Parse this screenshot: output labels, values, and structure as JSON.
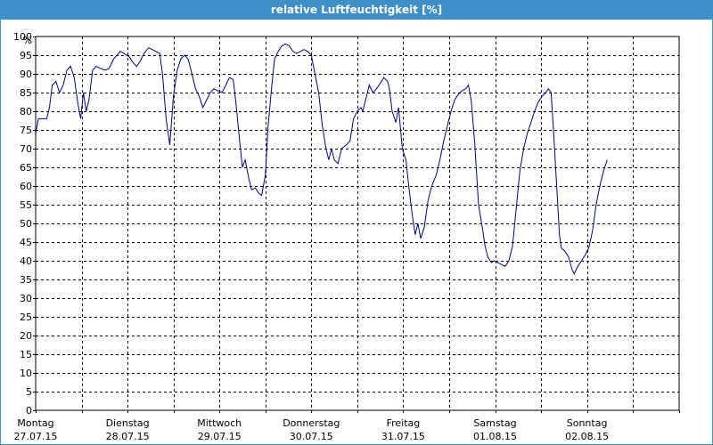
{
  "window": {
    "title": "relative Luftfeuchtigkeit [%]"
  },
  "chart_data": {
    "type": "line",
    "title": "relative Luftfeuchtigkeit [%]",
    "ylabel": "%",
    "xlabel": "",
    "ylim": [
      0,
      100
    ],
    "ytick_step": 5,
    "grid": true,
    "grid_style": "dashed",
    "line_color": "#00008b",
    "days": [
      {
        "name": "Montag",
        "date": "27.07.15"
      },
      {
        "name": "Dienstag",
        "date": "28.07.15"
      },
      {
        "name": "Mittwoch",
        "date": "29.07.15"
      },
      {
        "name": "Donnerstag",
        "date": "30.07.15"
      },
      {
        "name": "Freitag",
        "date": "31.07.15"
      },
      {
        "name": "Samstag",
        "date": "01.08.15"
      },
      {
        "name": "Sonntag",
        "date": "02.08.15"
      }
    ],
    "x_unit": "days since Montag 27.07.15 00:00",
    "series": [
      {
        "values": [
          [
            0.0,
            74
          ],
          [
            0.03,
            78
          ],
          [
            0.08,
            78
          ],
          [
            0.12,
            78
          ],
          [
            0.15,
            81
          ],
          [
            0.18,
            87
          ],
          [
            0.22,
            88
          ],
          [
            0.26,
            85
          ],
          [
            0.3,
            87
          ],
          [
            0.34,
            91
          ],
          [
            0.38,
            92
          ],
          [
            0.42,
            89
          ],
          [
            0.46,
            82
          ],
          [
            0.49,
            78
          ],
          [
            0.52,
            85
          ],
          [
            0.55,
            80
          ],
          [
            0.58,
            83
          ],
          [
            0.62,
            91
          ],
          [
            0.66,
            92
          ],
          [
            0.7,
            91.5
          ],
          [
            0.76,
            91
          ],
          [
            0.8,
            91.5
          ],
          [
            0.85,
            94
          ],
          [
            0.92,
            96
          ],
          [
            0.96,
            95.5
          ],
          [
            1.02,
            94.5
          ],
          [
            1.06,
            93
          ],
          [
            1.1,
            92
          ],
          [
            1.14,
            93.5
          ],
          [
            1.18,
            95.5
          ],
          [
            1.23,
            97
          ],
          [
            1.27,
            96.5
          ],
          [
            1.31,
            96
          ],
          [
            1.35,
            95.5
          ],
          [
            1.38,
            90
          ],
          [
            1.42,
            78
          ],
          [
            1.46,
            71
          ],
          [
            1.5,
            84
          ],
          [
            1.54,
            91
          ],
          [
            1.58,
            94
          ],
          [
            1.62,
            95
          ],
          [
            1.66,
            94
          ],
          [
            1.7,
            90
          ],
          [
            1.74,
            86
          ],
          [
            1.78,
            84
          ],
          [
            1.82,
            81
          ],
          [
            1.86,
            83
          ],
          [
            1.9,
            85
          ],
          [
            1.94,
            86
          ],
          [
            1.98,
            85.5
          ],
          [
            2.03,
            85
          ],
          [
            2.07,
            87
          ],
          [
            2.11,
            89
          ],
          [
            2.15,
            88.5
          ],
          [
            2.18,
            82
          ],
          [
            2.22,
            72
          ],
          [
            2.25,
            65
          ],
          [
            2.28,
            67
          ],
          [
            2.32,
            62
          ],
          [
            2.35,
            59
          ],
          [
            2.39,
            59.5
          ],
          [
            2.43,
            58
          ],
          [
            2.46,
            57.5
          ],
          [
            2.5,
            63
          ],
          [
            2.53,
            76
          ],
          [
            2.57,
            87
          ],
          [
            2.6,
            94
          ],
          [
            2.64,
            96
          ],
          [
            2.68,
            97.5
          ],
          [
            2.72,
            98
          ],
          [
            2.76,
            97.5
          ],
          [
            2.8,
            96
          ],
          [
            2.84,
            95.5
          ],
          [
            2.88,
            96
          ],
          [
            2.92,
            96.5
          ],
          [
            2.96,
            96
          ],
          [
            3.0,
            95
          ],
          [
            3.04,
            90
          ],
          [
            3.08,
            85
          ],
          [
            3.12,
            76
          ],
          [
            3.16,
            70
          ],
          [
            3.19,
            67
          ],
          [
            3.22,
            70
          ],
          [
            3.25,
            67
          ],
          [
            3.29,
            66
          ],
          [
            3.33,
            70
          ],
          [
            3.38,
            71
          ],
          [
            3.42,
            72
          ],
          [
            3.46,
            78
          ],
          [
            3.5,
            80
          ],
          [
            3.54,
            81
          ],
          [
            3.56,
            80
          ],
          [
            3.6,
            84
          ],
          [
            3.63,
            87
          ],
          [
            3.67,
            85
          ],
          [
            3.71,
            86
          ],
          [
            3.75,
            87.5
          ],
          [
            3.79,
            89
          ],
          [
            3.83,
            88
          ],
          [
            3.85,
            86
          ],
          [
            3.88,
            80
          ],
          [
            3.92,
            77
          ],
          [
            3.95,
            81
          ],
          [
            3.99,
            70
          ],
          [
            4.03,
            67
          ],
          [
            4.06,
            60
          ],
          [
            4.1,
            52
          ],
          [
            4.13,
            47
          ],
          [
            4.16,
            50
          ],
          [
            4.19,
            46
          ],
          [
            4.23,
            49
          ],
          [
            4.27,
            56
          ],
          [
            4.31,
            60
          ],
          [
            4.36,
            63
          ],
          [
            4.4,
            67
          ],
          [
            4.44,
            72
          ],
          [
            4.48,
            76
          ],
          [
            4.52,
            80
          ],
          [
            4.56,
            83
          ],
          [
            4.6,
            84.5
          ],
          [
            4.64,
            85.5
          ],
          [
            4.68,
            86
          ],
          [
            4.71,
            87
          ],
          [
            4.74,
            83
          ],
          [
            4.78,
            71
          ],
          [
            4.82,
            55
          ],
          [
            4.86,
            49
          ],
          [
            4.89,
            44
          ],
          [
            4.92,
            41
          ],
          [
            4.96,
            39.5
          ],
          [
            4.99,
            40
          ],
          [
            5.03,
            39.5
          ],
          [
            5.07,
            39
          ],
          [
            5.11,
            38.5
          ],
          [
            5.15,
            40
          ],
          [
            5.19,
            44
          ],
          [
            5.23,
            54
          ],
          [
            5.27,
            64
          ],
          [
            5.31,
            70
          ],
          [
            5.35,
            74
          ],
          [
            5.39,
            77
          ],
          [
            5.43,
            80
          ],
          [
            5.47,
            82.5
          ],
          [
            5.51,
            84
          ],
          [
            5.55,
            85
          ],
          [
            5.58,
            86
          ],
          [
            5.61,
            85
          ],
          [
            5.64,
            73
          ],
          [
            5.67,
            60
          ],
          [
            5.7,
            47
          ],
          [
            5.72,
            43.5
          ],
          [
            5.76,
            42.5
          ],
          [
            5.8,
            41
          ],
          [
            5.84,
            37.5
          ],
          [
            5.86,
            36.5
          ],
          [
            5.9,
            38.5
          ],
          [
            5.94,
            40
          ],
          [
            5.98,
            41.5
          ],
          [
            6.02,
            43.5
          ],
          [
            6.06,
            48
          ],
          [
            6.1,
            55
          ],
          [
            6.14,
            60
          ],
          [
            6.18,
            64
          ],
          [
            6.22,
            67
          ]
        ]
      }
    ]
  }
}
